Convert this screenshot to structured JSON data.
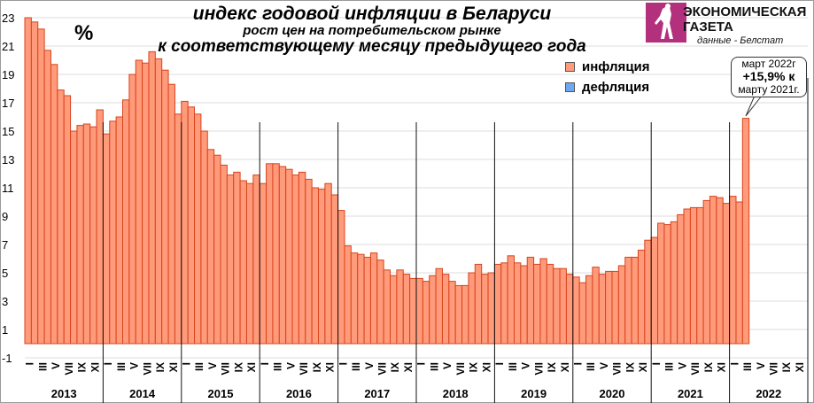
{
  "header": {
    "title": "индекс годовой инфляции в Беларуси",
    "subtitle1": "рост цен на потребительском рынке",
    "subtitle2": "к соответствующему месяцу предыдущего года",
    "unit": "%"
  },
  "brand": {
    "name_line1": "ЭКОНОМИЧЕСКАЯ",
    "name_line2": "ГАЗЕТА",
    "logo_color": "#b3307c",
    "source": "данные - Белстат"
  },
  "legend": [
    {
      "label": "инфляция",
      "color": "#ff9a7a"
    },
    {
      "label": "дефляция",
      "color": "#6fa8f0"
    }
  ],
  "callout": {
    "line1": "март 2022г",
    "line2": "+15,9% к",
    "line3": "марту  2021г."
  },
  "chart_data": {
    "type": "bar",
    "title": "индекс годовой инфляции в Беларуси",
    "subtitle": "рост цен на потребительском рынке к соответствующему месяцу предыдущего года",
    "ylabel": "%",
    "xlabel": "",
    "ylim": [
      -1.5,
      23.5
    ],
    "yticks": [
      -1,
      1,
      3,
      5,
      7,
      9,
      11,
      13,
      15,
      17,
      19,
      21,
      23
    ],
    "grid": true,
    "legend_position": "top-right",
    "month_tick_labels": [
      "I",
      "III",
      "V",
      "VII",
      "IX",
      "XI"
    ],
    "years": [
      "2013",
      "2014",
      "2015",
      "2016",
      "2017",
      "2018",
      "2019",
      "2020",
      "2021",
      "2022"
    ],
    "series": [
      {
        "name": "инфляция",
        "color": "#ff9a7a",
        "values": [
          23.0,
          22.7,
          22.2,
          20.7,
          19.7,
          17.9,
          17.5,
          15.0,
          15.4,
          15.5,
          15.3,
          16.5,
          14.8,
          15.7,
          16.0,
          17.2,
          19.0,
          20.0,
          19.8,
          20.6,
          20.1,
          19.3,
          18.3,
          16.2,
          17.1,
          16.7,
          16.2,
          15.0,
          13.7,
          13.3,
          12.6,
          11.9,
          12.1,
          11.5,
          11.3,
          11.9,
          11.3,
          12.7,
          12.7,
          12.5,
          12.3,
          11.9,
          12.1,
          11.6,
          11.0,
          10.9,
          11.3,
          10.5,
          9.4,
          6.9,
          6.4,
          6.3,
          6.1,
          6.4,
          5.9,
          5.2,
          4.8,
          5.2,
          4.9,
          4.6,
          4.6,
          4.4,
          4.8,
          5.3,
          4.9,
          4.4,
          4.1,
          4.1,
          5.0,
          5.6,
          4.9,
          5.0,
          5.6,
          5.7,
          6.2,
          5.7,
          5.5,
          6.1,
          5.6,
          6.0,
          5.6,
          5.3,
          5.3,
          4.9,
          4.7,
          4.3,
          4.8,
          5.4,
          4.9,
          5.1,
          5.1,
          5.5,
          6.1,
          6.1,
          6.6,
          7.3,
          7.5,
          8.5,
          8.4,
          8.6,
          9.1,
          9.5,
          9.6,
          9.6,
          10.1,
          10.4,
          10.3,
          9.9,
          10.4,
          10.0,
          15.9
        ]
      },
      {
        "name": "дефляция",
        "color": "#6fa8f0",
        "values": []
      }
    ]
  }
}
